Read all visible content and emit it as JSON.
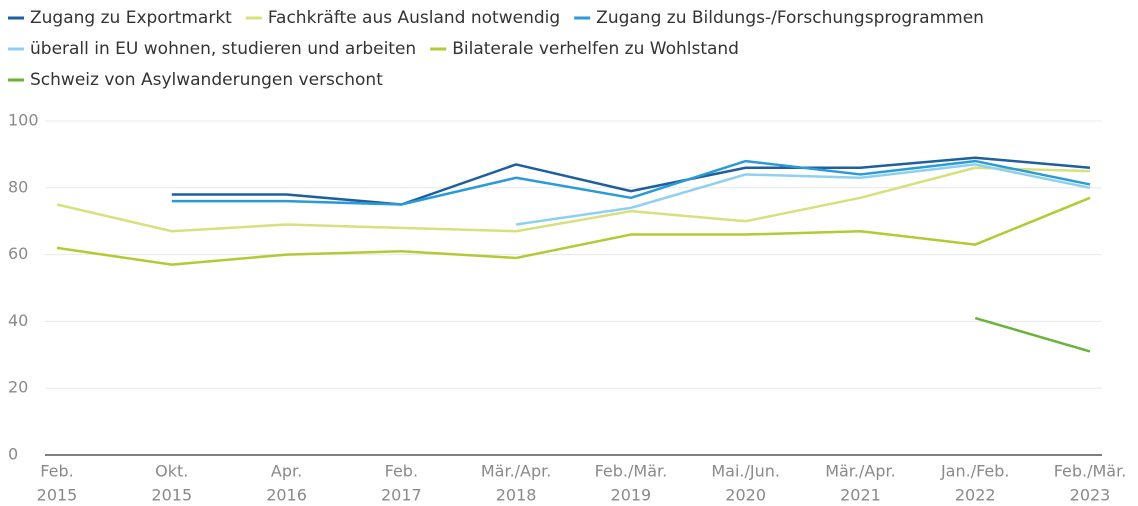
{
  "chart_data": {
    "type": "line",
    "categories": [
      [
        "Feb.",
        "2015"
      ],
      [
        "Okt.",
        "2015"
      ],
      [
        "Apr.",
        "2016"
      ],
      [
        "Feb.",
        "2017"
      ],
      [
        "Mär./Apr.",
        "2018"
      ],
      [
        "Feb./Mär.",
        "2019"
      ],
      [
        "Mai./Jun.",
        "2020"
      ],
      [
        "Mär./Apr.",
        "2021"
      ],
      [
        "Jan./Feb.",
        "2022"
      ],
      [
        "Feb./Mär.",
        "2023"
      ]
    ],
    "series": [
      {
        "name": "Zugang zu Exportmarkt",
        "color": "#1f5f9e",
        "values": [
          null,
          78,
          78,
          75,
          87,
          79,
          86,
          86,
          89,
          86
        ]
      },
      {
        "name": "Fachkräfte aus Ausland notwendig",
        "color": "#d6e07c",
        "values": [
          75,
          67,
          69,
          68,
          67,
          73,
          70,
          77,
          86,
          85
        ]
      },
      {
        "name": "Zugang zu Bildungs-/Forschungsprogrammen",
        "color": "#2a9ad8",
        "values": [
          null,
          76,
          76,
          75,
          83,
          77,
          88,
          84,
          88,
          81
        ]
      },
      {
        "name": "überall in EU wohnen, studieren und arbeiten",
        "color": "#8fd0f0",
        "values": [
          null,
          null,
          null,
          null,
          69,
          74,
          84,
          83,
          87,
          80
        ]
      },
      {
        "name": "Bilaterale verhelfen zu Wohlstand",
        "color": "#b5c935",
        "values": [
          62,
          57,
          60,
          61,
          59,
          66,
          66,
          67,
          63,
          77
        ]
      },
      {
        "name": "Schweiz von Asylwanderungen verschont",
        "color": "#6ab23a",
        "values": [
          null,
          null,
          null,
          null,
          null,
          null,
          null,
          null,
          41,
          31
        ]
      }
    ],
    "ylim": [
      0,
      100
    ],
    "yticks": [
      0,
      20,
      40,
      60,
      80,
      100
    ],
    "grid": true,
    "legend": "top-left"
  }
}
